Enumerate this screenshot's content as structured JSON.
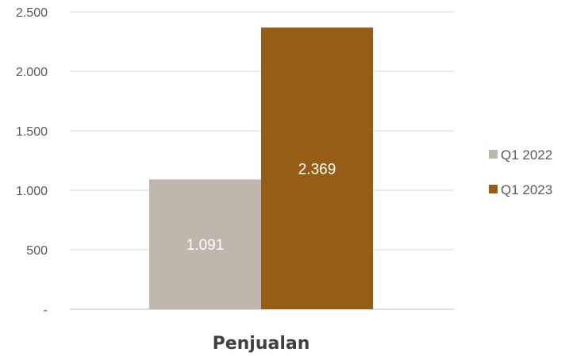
{
  "chart_data": {
    "type": "bar",
    "categories": [
      "Penjualan"
    ],
    "series": [
      {
        "name": "Q1 2022",
        "values": [
          1091
        ],
        "label": "1.091",
        "color": "#bfb6ae"
      },
      {
        "name": "Q1 2023",
        "values": [
          2369
        ],
        "label": "2.369",
        "color": "#955e14"
      }
    ],
    "xlabel": "Penjualan",
    "ylim": [
      0,
      2500
    ],
    "yticks": [
      0,
      500,
      1000,
      1500,
      2000,
      2500
    ],
    "ytick_labels": [
      "-",
      "500",
      "1.000",
      "1.500",
      "2.000",
      "2.500"
    ],
    "grid": true,
    "legend_position": "right"
  }
}
